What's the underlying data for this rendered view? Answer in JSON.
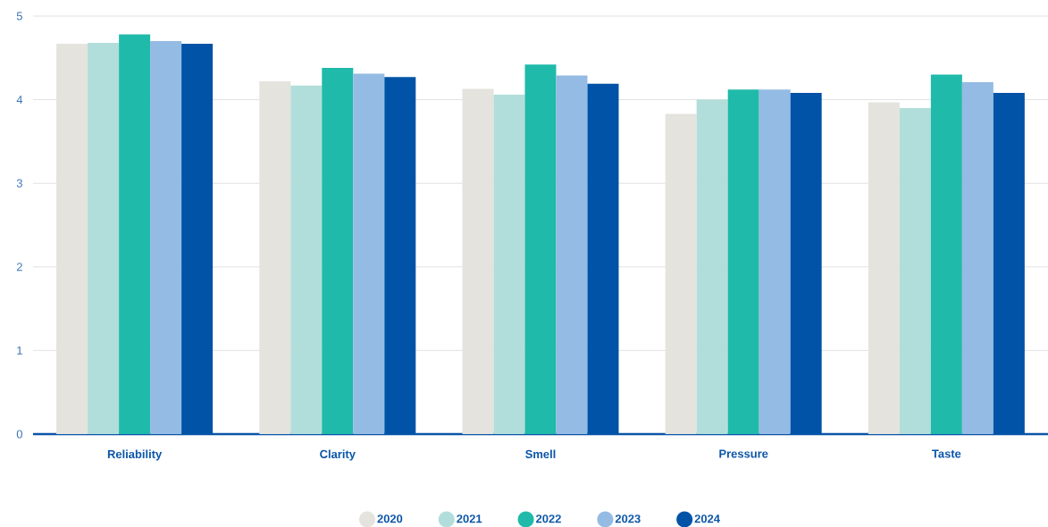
{
  "chart_data": {
    "type": "bar",
    "categories": [
      "Reliability",
      "Clarity",
      "Smell",
      "Pressure",
      "Taste"
    ],
    "series": [
      {
        "name": "2020",
        "color": "#e4e3de",
        "values": [
          4.67,
          4.22,
          4.13,
          3.83,
          3.97
        ]
      },
      {
        "name": "2021",
        "color": "#b1deda",
        "values": [
          4.68,
          4.17,
          4.06,
          4.0,
          3.9
        ]
      },
      {
        "name": "2022",
        "color": "#20baaa",
        "values": [
          4.78,
          4.38,
          4.42,
          4.12,
          4.3
        ]
      },
      {
        "name": "2023",
        "color": "#94bbe3",
        "values": [
          4.7,
          4.31,
          4.29,
          4.12,
          4.21
        ]
      },
      {
        "name": "2024",
        "color": "#0053a6",
        "values": [
          4.67,
          4.27,
          4.19,
          4.08,
          4.08
        ]
      }
    ],
    "ylim": [
      0,
      5
    ],
    "yticks": [
      0,
      1,
      2,
      3,
      4,
      5
    ],
    "grid": "y",
    "legend": "bottom"
  }
}
